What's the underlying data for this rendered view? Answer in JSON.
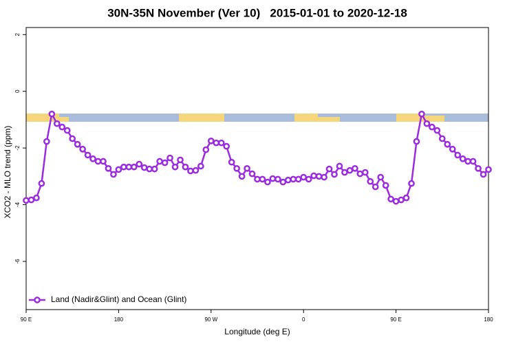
{
  "chart_data": {
    "type": "line",
    "title": "30N-35N November (Ver 10)   2015-01-01 to 2020-12-18",
    "xlabel": "Longitude (deg E)",
    "ylabel": "XCO2 - MLO trend (ppm)",
    "xlim": [
      90,
      540
    ],
    "ylim": [
      -7.7,
      2.25
    ],
    "xticks": [
      {
        "value": 90,
        "label": "90 E"
      },
      180,
      {
        "value": 270,
        "label": "90 W"
      },
      {
        "value": 360,
        "label": "0"
      },
      {
        "value": 450,
        "label": "90 E"
      },
      {
        "value": 540,
        "label": "180"
      }
    ],
    "yticks": [
      2,
      0,
      -2,
      -4,
      -6
    ],
    "legend": "bottom-left",
    "x": [
      90,
      95,
      100,
      105,
      110,
      115,
      120,
      125,
      130,
      135,
      140,
      145,
      150,
      155,
      160,
      165,
      170,
      175,
      180,
      185,
      190,
      195,
      200,
      205,
      210,
      215,
      220,
      225,
      230,
      235,
      240,
      245,
      250,
      255,
      260,
      265,
      270,
      275,
      280,
      285,
      290,
      295,
      300,
      305,
      310,
      315,
      320,
      325,
      330,
      335,
      340,
      345,
      350,
      355,
      360,
      365,
      370,
      375,
      380,
      385,
      390,
      395,
      400,
      405,
      410,
      415,
      420,
      425,
      430,
      435,
      440,
      445,
      450,
      455,
      460,
      465,
      470,
      475,
      480,
      485,
      490,
      495,
      500,
      505,
      510,
      515,
      520,
      525,
      530,
      535,
      540
    ],
    "series": [
      {
        "name": "Land (Nadir&Glint) and Ocean (Glint)",
        "color": "#9b2be0",
        "values": [
          -3.85,
          -3.83,
          -3.76,
          -3.25,
          -1.77,
          -0.8,
          -1.14,
          -1.26,
          -1.38,
          -1.67,
          -1.87,
          -2.04,
          -2.25,
          -2.38,
          -2.47,
          -2.47,
          -2.72,
          -2.93,
          -2.76,
          -2.67,
          -2.67,
          -2.67,
          -2.57,
          -2.69,
          -2.74,
          -2.74,
          -2.47,
          -2.52,
          -2.35,
          -2.67,
          -2.42,
          -2.67,
          -2.81,
          -2.79,
          -2.64,
          -2.06,
          -1.75,
          -1.82,
          -1.82,
          -1.94,
          -2.5,
          -2.72,
          -3.0,
          -2.72,
          -2.91,
          -3.1,
          -3.1,
          -3.2,
          -3.08,
          -3.1,
          -3.2,
          -3.13,
          -3.1,
          -3.1,
          -3.03,
          -3.1,
          -2.98,
          -3.0,
          -3.03,
          -2.74,
          -2.93,
          -2.64,
          -2.86,
          -2.79,
          -2.72,
          -2.91,
          -2.86,
          -3.18,
          -3.37,
          -3.03,
          -3.32,
          -3.8,
          -3.88,
          -3.83,
          -3.76,
          -3.25,
          -1.77,
          -0.8,
          -1.14,
          -1.26,
          -1.38,
          -1.67,
          -1.87,
          -2.04,
          -2.25,
          -2.38,
          -2.47,
          -2.47,
          -2.72,
          -2.93,
          -2.76
        ]
      }
    ]
  }
}
